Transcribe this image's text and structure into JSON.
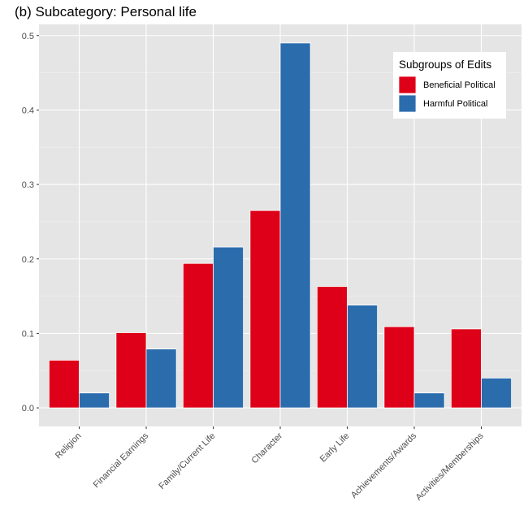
{
  "chart_data": {
    "type": "bar",
    "title": "(b) Subcategory: Personal life",
    "xlabel": "",
    "ylabel": "",
    "categories": [
      "Religion",
      "Financial Earnings",
      "Family/Current Life",
      "Character",
      "Early Life",
      "Achievements/Awards",
      "Activities/Memberships"
    ],
    "series": [
      {
        "name": "Beneficial Political",
        "color": "#de0018",
        "values": [
          0.064,
          0.101,
          0.194,
          0.265,
          0.163,
          0.109,
          0.106
        ]
      },
      {
        "name": "Harmful Political",
        "color": "#2b6cad",
        "values": [
          0.02,
          0.079,
          0.216,
          0.49,
          0.138,
          0.02,
          0.04
        ]
      }
    ],
    "ylim": [
      -0.025,
      0.515
    ],
    "yticks": [
      0.0,
      0.1,
      0.2,
      0.3,
      0.4,
      0.5
    ],
    "ytick_labels": [
      "0.0",
      "0.1",
      "0.2",
      "0.3",
      "0.4",
      "0.5"
    ],
    "grid": true,
    "legend": {
      "title": "Subgroups of Edits",
      "placement": "top-right"
    }
  }
}
